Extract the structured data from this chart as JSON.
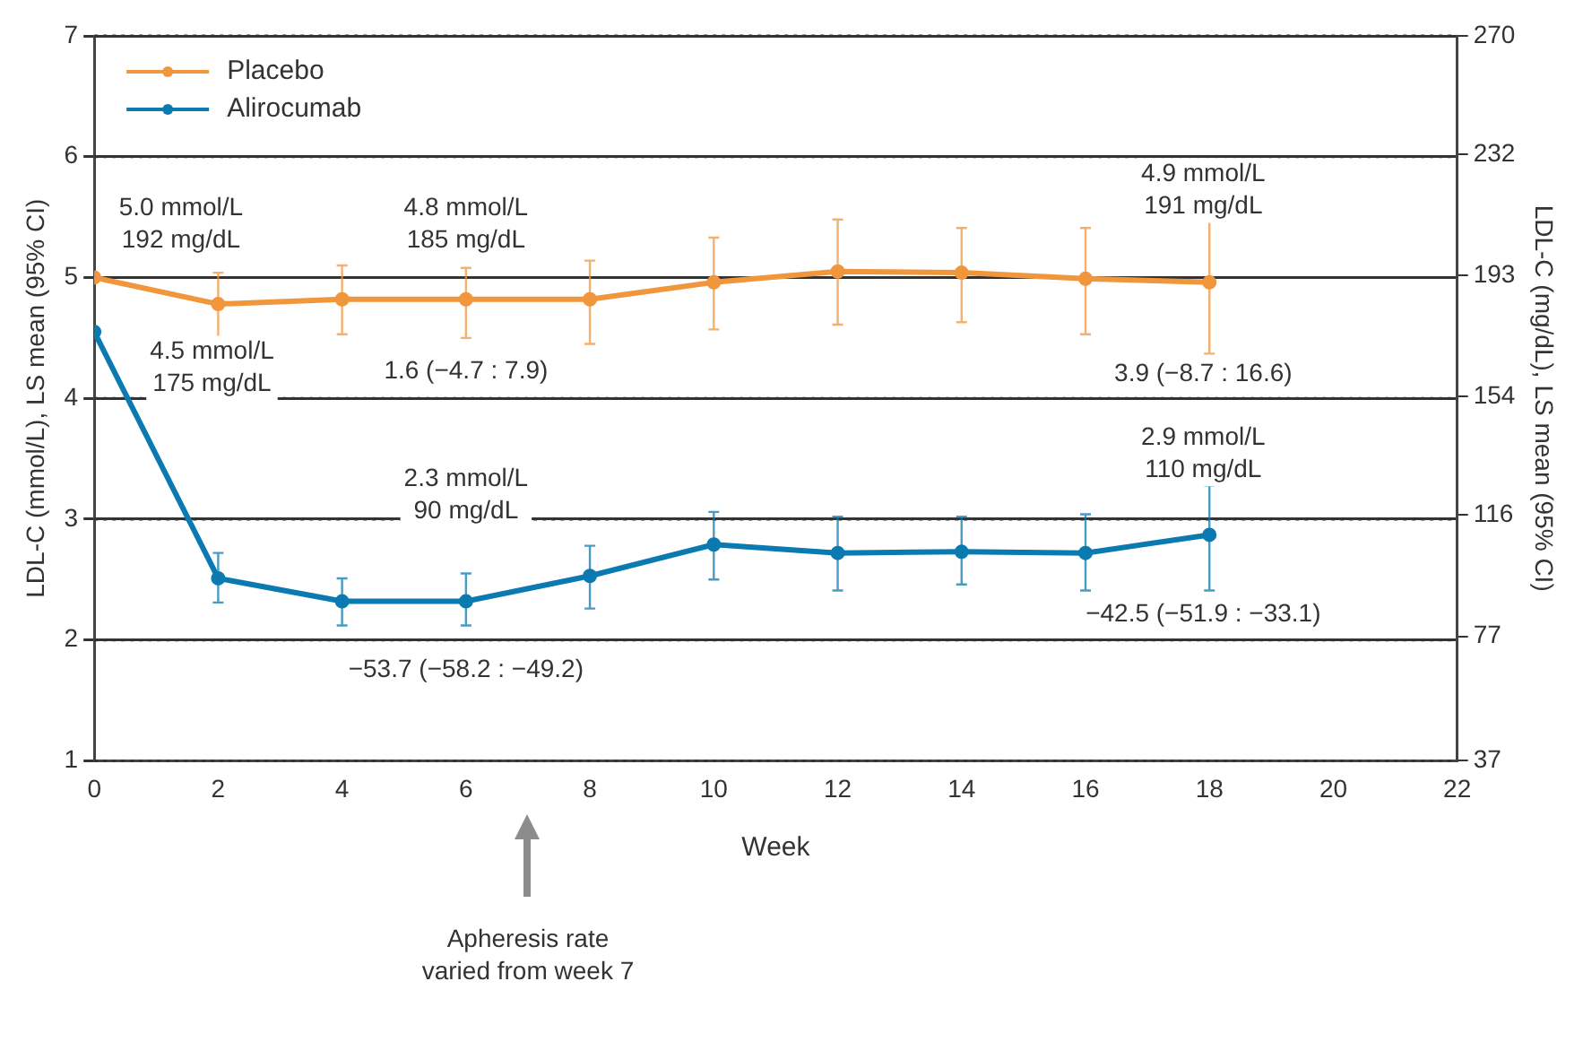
{
  "chart_data": {
    "type": "line",
    "xlabel": "Week",
    "ylabel": "LDL-C (mmol/L), LS mean (95% CI)",
    "y2label": "LDL-C (mg/dL), LS mean (95% CI)",
    "x": [
      0,
      2,
      4,
      6,
      8,
      10,
      12,
      14,
      16,
      18
    ],
    "series": [
      {
        "name": "Placebo",
        "color": "#f0963c",
        "values": [
          5.0,
          4.78,
          4.82,
          4.82,
          4.82,
          4.96,
          5.05,
          5.04,
          4.99,
          4.96
        ],
        "errors": [
          null,
          [
            4.49,
            5.04
          ],
          [
            4.53,
            5.1
          ],
          [
            4.5,
            5.08
          ],
          [
            4.45,
            5.14
          ],
          [
            4.57,
            5.33
          ],
          [
            4.61,
            5.48
          ],
          [
            4.63,
            5.41
          ],
          [
            4.53,
            5.41
          ],
          [
            4.37,
            5.52
          ]
        ]
      },
      {
        "name": "Alirocumab",
        "color": "#0a7ab0",
        "values": [
          4.55,
          2.51,
          2.32,
          2.32,
          2.53,
          2.79,
          2.72,
          2.73,
          2.72,
          2.87
        ],
        "errors": [
          null,
          [
            2.31,
            2.72
          ],
          [
            2.12,
            2.51
          ],
          [
            2.12,
            2.55
          ],
          [
            2.26,
            2.78
          ],
          [
            2.5,
            3.06
          ],
          [
            2.41,
            3.02
          ],
          [
            2.46,
            3.02
          ],
          [
            2.41,
            3.04
          ],
          [
            2.41,
            3.28
          ]
        ]
      }
    ],
    "xlim": [
      0,
      22
    ],
    "xticks": [
      0,
      2,
      4,
      6,
      8,
      10,
      12,
      14,
      16,
      18,
      20,
      22
    ],
    "ylim": [
      1,
      7
    ],
    "yticks": [
      1,
      2,
      3,
      4,
      5,
      6,
      7
    ],
    "y2lim": [
      37,
      270
    ],
    "y2ticks": [
      37,
      77,
      116,
      154,
      193,
      232,
      270
    ],
    "grid": "y",
    "legend": "top left",
    "marker": "circle",
    "line_style": "solid",
    "annotations": [
      "5.0 mmol/L\n192 mg/dL",
      "4.8 mmol/L\n185 mg/dL",
      "4.5 mmol/L\n175 mg/dL",
      "1.6 (−4.7 : 7.9)",
      "4.9 mmol/L\n191 mg/dL",
      "3.9 (−8.7 : 16.6)",
      "2.9 mmol/L\n110 mg/dL",
      "−42.5 (−51.9 : −33.1)",
      "2.3 mmol/L\n90 mg/dL",
      "−53.7 (−58.2 : −49.2)",
      "Apheresis rate\nvaried from week 7"
    ]
  }
}
